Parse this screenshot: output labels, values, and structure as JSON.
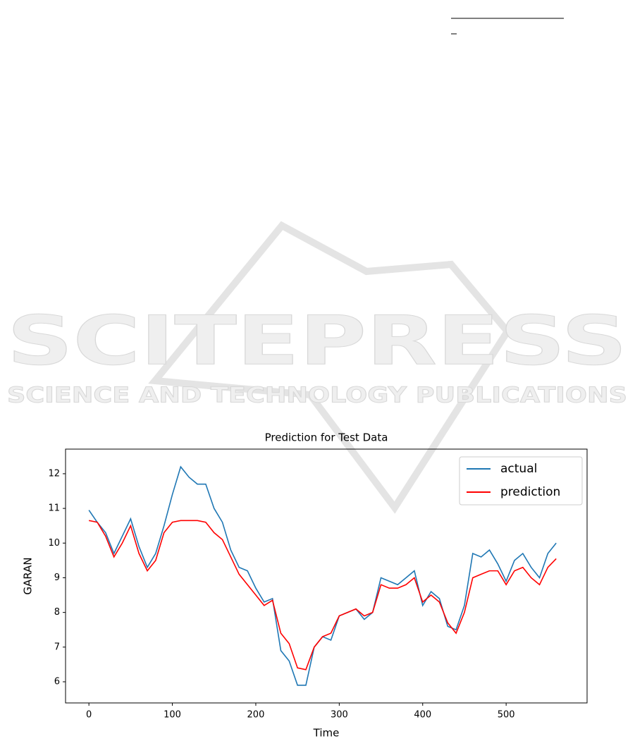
{
  "watermark": {
    "title": "SCITEPRESS",
    "subtitle": "SCIENCE AND TECHNOLOGY PUBLICATIONS"
  },
  "chart_data": {
    "type": "line",
    "title": "Prediction for Test Data",
    "x_label": "Time",
    "y_label": "GARAN",
    "x": [
      0,
      10,
      20,
      30,
      40,
      50,
      60,
      70,
      80,
      90,
      100,
      110,
      120,
      130,
      140,
      150,
      160,
      170,
      180,
      190,
      200,
      210,
      220,
      230,
      240,
      250,
      260,
      270,
      280,
      290,
      300,
      310,
      320,
      330,
      340,
      350,
      360,
      370,
      380,
      390,
      400,
      410,
      420,
      430,
      440,
      450,
      460,
      470,
      480,
      490,
      500,
      510,
      520,
      530,
      540,
      550,
      560
    ],
    "series": [
      {
        "name": "actual",
        "color": "#1f77b4",
        "values": [
          10.95,
          10.6,
          10.3,
          9.7,
          10.2,
          10.7,
          9.9,
          9.3,
          9.7,
          10.5,
          11.4,
          12.2,
          11.9,
          11.7,
          11.7,
          11.0,
          10.6,
          9.8,
          9.3,
          9.2,
          8.7,
          8.3,
          8.4,
          6.9,
          6.6,
          5.9,
          5.9,
          7.0,
          7.3,
          7.2,
          7.9,
          8.0,
          8.1,
          7.8,
          8.0,
          9.0,
          8.9,
          8.8,
          9.0,
          9.2,
          8.2,
          8.6,
          8.4,
          7.6,
          7.5,
          8.2,
          9.7,
          9.6,
          9.8,
          9.4,
          8.9,
          9.5,
          9.7,
          9.3,
          9.0,
          9.7,
          10.0
        ]
      },
      {
        "name": "prediction",
        "color": "#ff0000",
        "values": [
          10.65,
          10.6,
          10.2,
          9.6,
          10.0,
          10.5,
          9.7,
          9.2,
          9.5,
          10.3,
          10.6,
          10.65,
          10.65,
          10.65,
          10.6,
          10.3,
          10.1,
          9.6,
          9.1,
          8.8,
          8.5,
          8.2,
          8.35,
          7.4,
          7.1,
          6.4,
          6.35,
          7.0,
          7.3,
          7.4,
          7.9,
          8.0,
          8.1,
          7.9,
          8.0,
          8.8,
          8.7,
          8.7,
          8.8,
          9.0,
          8.3,
          8.5,
          8.3,
          7.7,
          7.4,
          8.0,
          9.0,
          9.1,
          9.2,
          9.2,
          8.8,
          9.2,
          9.3,
          9.0,
          8.8,
          9.3,
          9.55
        ]
      }
    ],
    "xlim": [
      -28,
      597
    ],
    "ylim": [
      5.39,
      12.71
    ],
    "xticks": [
      0,
      100,
      200,
      300,
      400,
      500
    ],
    "yticks": [
      6,
      7,
      8,
      9,
      10,
      11,
      12
    ],
    "grid": false,
    "legend": "upper right"
  }
}
